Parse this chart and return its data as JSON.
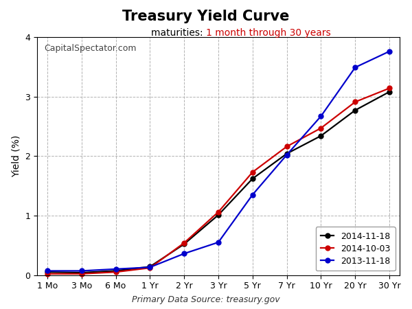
{
  "title": "Treasury Yield Curve",
  "subtitle_prefix": "maturities: ",
  "subtitle_colored": "1 month through 30 years",
  "subtitle_prefix_color": "#000000",
  "subtitle_colored_color": "#cc0000",
  "watermark": "CapitalSpectator.com",
  "ylabel": "Yield (%)",
  "footer": "Primary Data Source: treasury.gov",
  "x_labels": [
    "1 Mo",
    "3 Mo",
    "6 Mo",
    "1 Yr",
    "2 Yr",
    "3 Yr",
    "5 Yr",
    "7 Yr",
    "10 Yr",
    "20 Yr",
    "30 Yr"
  ],
  "series": [
    {
      "label": "2014-11-18",
      "color": "#000000",
      "values": [
        0.05,
        0.04,
        0.07,
        0.14,
        0.52,
        1.01,
        1.62,
        2.04,
        2.34,
        2.77,
        3.08
      ]
    },
    {
      "label": "2014-10-03",
      "color": "#cc0000",
      "values": [
        0.02,
        0.02,
        0.05,
        0.12,
        0.54,
        1.06,
        1.73,
        2.16,
        2.47,
        2.91,
        3.14
      ]
    },
    {
      "label": "2013-11-18",
      "color": "#0000cc",
      "values": [
        0.07,
        0.07,
        0.1,
        0.13,
        0.36,
        0.55,
        1.35,
        2.02,
        2.67,
        3.49,
        3.76
      ]
    }
  ],
  "ylim": [
    0,
    4
  ],
  "yticks": [
    0,
    1,
    2,
    3,
    4
  ],
  "background_color": "#ffffff",
  "plot_bg_color": "#ffffff",
  "grid_color": "#aaaaaa",
  "marker": "o",
  "markersize": 5,
  "linewidth": 1.6
}
